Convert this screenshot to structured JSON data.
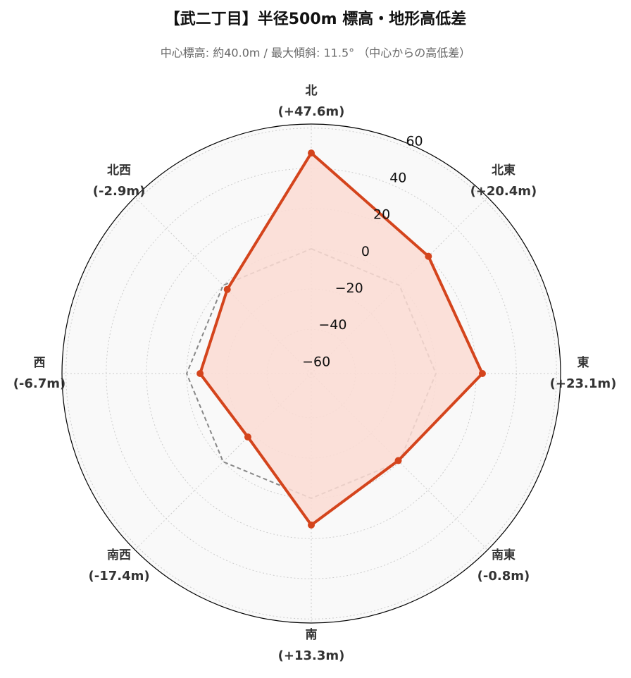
{
  "chart_data": {
    "type": "radar",
    "title": "【武二丁目】半径500m 標高・地形高低差",
    "subtitle": "中心標高: 約40.0m / 最大傾斜: 11.5° （中心からの高低差）",
    "categories": [
      "北",
      "北東",
      "東",
      "南東",
      "南",
      "南西",
      "西",
      "北西"
    ],
    "series": [
      {
        "color": "#d4441c",
        "fill": "#fcdcd3",
        "values": [
          47.6,
          20.4,
          23.1,
          -0.8,
          13.3,
          -17.4,
          -6.7,
          -2.9
        ],
        "value_labels": [
          "(+47.6m)",
          "(+20.4m)",
          "(+23.1m)",
          "(-0.8m)",
          "(+13.3m)",
          "(-17.4m)",
          "(-6.7m)",
          "(-2.9m)"
        ]
      }
    ],
    "reference": {
      "value": 0,
      "color": "#888888"
    },
    "ylim": [
      -62,
      62
    ],
    "yticks": [
      {
        "value": -60,
        "label": "−60"
      },
      {
        "value": -40,
        "label": "−40"
      },
      {
        "value": -20,
        "label": "−20"
      },
      0,
      20,
      40,
      60
    ],
    "grid": true
  }
}
